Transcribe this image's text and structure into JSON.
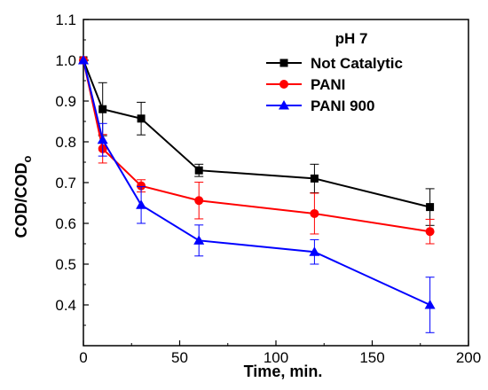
{
  "chart_data": {
    "type": "line",
    "xlabel": "Time, min.",
    "ylabel_main": "COD/COD",
    "ylabel_sub": "o",
    "legend_title": "pH 7",
    "xlim": [
      0,
      200
    ],
    "ylim": [
      0.3,
      1.1
    ],
    "xticks": [
      0,
      50,
      100,
      150,
      200
    ],
    "yticks": [
      0.4,
      0.5,
      0.6,
      0.7,
      0.8,
      0.9,
      1.0,
      1.1
    ],
    "legend_position": "top-right",
    "series": [
      {
        "name": "Not Catalytic",
        "color": "#000000",
        "marker": "square",
        "x": [
          0,
          10,
          30,
          60,
          120,
          180
        ],
        "y": [
          1.0,
          0.88,
          0.857,
          0.73,
          0.71,
          0.64
        ],
        "err": [
          0.0,
          0.065,
          0.04,
          0.015,
          0.035,
          0.045
        ]
      },
      {
        "name": "PANI",
        "color": "#ff0000",
        "marker": "circle",
        "x": [
          0,
          10,
          30,
          60,
          120,
          180
        ],
        "y": [
          1.0,
          0.783,
          0.692,
          0.656,
          0.624,
          0.58
        ],
        "err": [
          0.0,
          0.035,
          0.015,
          0.045,
          0.05,
          0.03
        ]
      },
      {
        "name": "PANI 900",
        "color": "#0000ff",
        "marker": "triangle",
        "x": [
          0,
          10,
          30,
          60,
          120,
          180
        ],
        "y": [
          1.0,
          0.805,
          0.645,
          0.558,
          0.53,
          0.4
        ],
        "err": [
          0.0,
          0.04,
          0.045,
          0.038,
          0.03,
          0.068
        ]
      }
    ]
  }
}
